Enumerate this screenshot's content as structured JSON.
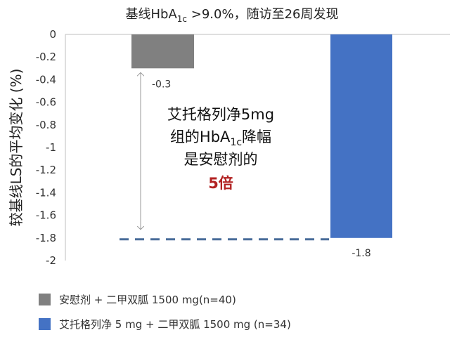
{
  "chart_data": {
    "type": "bar",
    "title_main": "基线HbA",
    "title_sub": "1c",
    "title_rest": " >9.0%，随访至26周发现",
    "ylabel": "较基线LS的平均变化 (%)",
    "ylim": [
      -2,
      0
    ],
    "yticks": [
      "0",
      "-0.2",
      "-0.4",
      "-0.6",
      "-0.8",
      "-1",
      "-1.2",
      "-1.4",
      "-1.6",
      "-1.8",
      "-2"
    ],
    "grid": false,
    "legend_position": "bottom-left",
    "series": [
      {
        "name": "安慰剂 + 二甲双胍 1500 mg(n=40)",
        "value": -0.3,
        "label": "-0.3",
        "color": "#808080"
      },
      {
        "name": "艾托格列净 5 mg + 二甲双胍 1500 mg (n=34)",
        "value": -1.8,
        "label": "-1.8",
        "color": "#4472c4"
      }
    ],
    "annotation": {
      "line1": "艾托格列净5mg",
      "line2_pre": "组的HbA",
      "line2_sub": "1c",
      "line2_post": "降幅",
      "line3": "是安慰剂的",
      "highlight": "5倍",
      "highlight_color": "#b22222"
    },
    "reference_line_value": -1.8
  }
}
